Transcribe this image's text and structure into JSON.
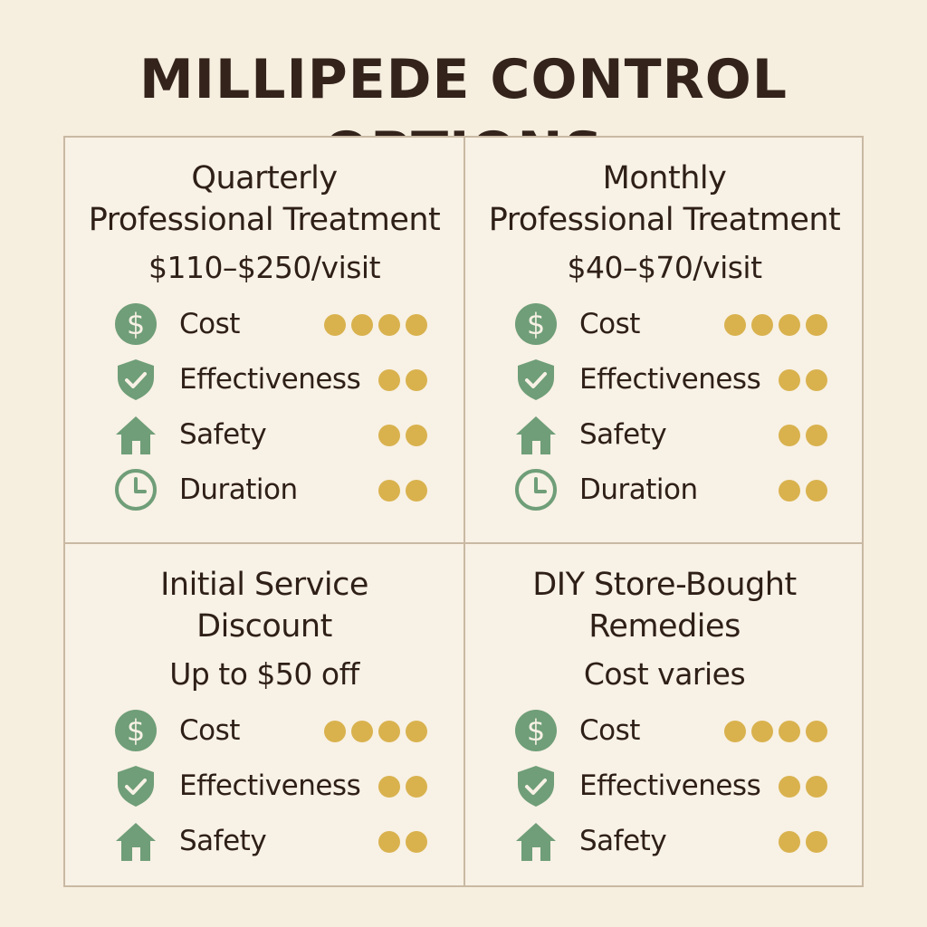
{
  "title": "MILLIPEDE CONTROL OPTIONS",
  "colors": {
    "background": "#f6eedf",
    "icon_green": "#6f9e78",
    "dot_gold": "#d9b24e",
    "text": "#2e1f17"
  },
  "panels": [
    {
      "title_lines": [
        "Quarterly",
        "Professional Treatment"
      ],
      "price": "$110–$250/visit",
      "rows": [
        {
          "icon": "dollar-icon",
          "label": "Cost",
          "rating": 4
        },
        {
          "icon": "shield-check-icon",
          "label": "Effectiveness",
          "rating": 2
        },
        {
          "icon": "house-icon",
          "label": "Safety",
          "rating": 2
        },
        {
          "icon": "clock-icon",
          "label": "Duration",
          "rating": 2
        }
      ]
    },
    {
      "title_lines": [
        "Monthly",
        "Professional Treatment"
      ],
      "price": "$40–$70/visit",
      "rows": [
        {
          "icon": "dollar-icon",
          "label": "Cost",
          "rating": 4
        },
        {
          "icon": "shield-check-icon",
          "label": "Effectiveness",
          "rating": 2
        },
        {
          "icon": "house-icon",
          "label": "Safety",
          "rating": 2
        },
        {
          "icon": "clock-icon",
          "label": "Duration",
          "rating": 2
        }
      ]
    },
    {
      "title_lines": [
        "Initial Service",
        "Discount"
      ],
      "price": "Up to $50 off",
      "rows": [
        {
          "icon": "dollar-icon",
          "label": "Cost",
          "rating": 4
        },
        {
          "icon": "shield-check-icon",
          "label": "Effectiveness",
          "rating": 2
        },
        {
          "icon": "house-icon",
          "label": "Safety",
          "rating": 2
        }
      ]
    },
    {
      "title_lines": [
        "DIY Store-Bought",
        "Remedies"
      ],
      "price": "Cost varies",
      "rows": [
        {
          "icon": "dollar-icon",
          "label": "Cost",
          "rating": 4
        },
        {
          "icon": "shield-check-icon",
          "label": "Effectiveness",
          "rating": 2
        },
        {
          "icon": "house-icon",
          "label": "Safety",
          "rating": 2
        }
      ]
    }
  ]
}
